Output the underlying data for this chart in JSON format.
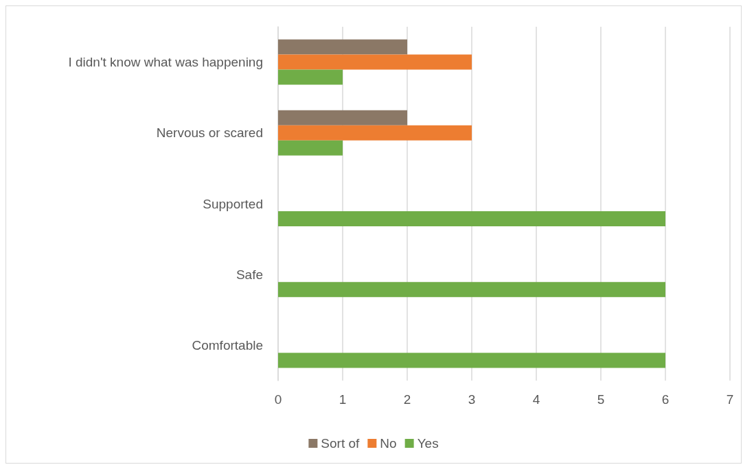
{
  "chart_data": {
    "type": "bar",
    "orientation": "horizontal",
    "categories": [
      "I didn't know what was happening",
      "Nervous or scared",
      "Supported",
      "Safe",
      "Comfortable"
    ],
    "series": [
      {
        "name": "Sort of",
        "color": "#8b7866",
        "values": [
          2,
          2,
          null,
          null,
          null
        ]
      },
      {
        "name": "No",
        "color": "#ed7d31",
        "values": [
          3,
          3,
          null,
          null,
          null
        ]
      },
      {
        "name": "Yes",
        "color": "#70ad47",
        "values": [
          1,
          1,
          6,
          6,
          6
        ]
      }
    ],
    "xlim": [
      0,
      7
    ],
    "xticks": [
      0,
      1,
      2,
      3,
      4,
      5,
      6,
      7
    ],
    "grid": "x",
    "legend": "bottom"
  }
}
